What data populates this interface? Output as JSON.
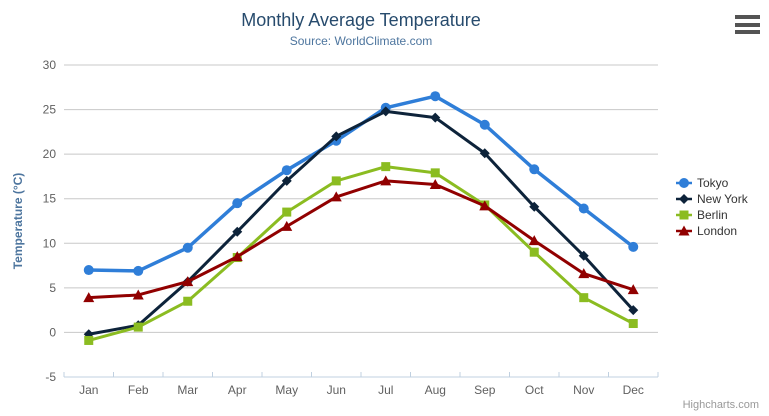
{
  "header": {
    "title": "Monthly Average Temperature",
    "subtitle": "Source: WorldClimate.com"
  },
  "credits_label": "Highcharts.com",
  "chart_data": {
    "type": "line",
    "title": "Monthly Average Temperature",
    "subtitle": "Source: WorldClimate.com",
    "xlabel": "",
    "ylabel": "Temperature (°C)",
    "categories": [
      "Jan",
      "Feb",
      "Mar",
      "Apr",
      "May",
      "Jun",
      "Jul",
      "Aug",
      "Sep",
      "Oct",
      "Nov",
      "Dec"
    ],
    "series": [
      {
        "name": "Tokyo",
        "color": "#2f7ed8",
        "marker": "circle",
        "line_width": 3.5,
        "values": [
          7.0,
          6.9,
          9.5,
          14.5,
          18.2,
          21.5,
          25.2,
          26.5,
          23.3,
          18.3,
          13.9,
          9.6
        ]
      },
      {
        "name": "New York",
        "color": "#0d233a",
        "marker": "diamond",
        "line_width": 3,
        "values": [
          -0.2,
          0.8,
          5.7,
          11.3,
          17.0,
          22.0,
          24.8,
          24.1,
          20.1,
          14.1,
          8.6,
          2.5
        ]
      },
      {
        "name": "Berlin",
        "color": "#8bbc21",
        "marker": "square",
        "line_width": 3,
        "values": [
          -0.9,
          0.6,
          3.5,
          8.4,
          13.5,
          17.0,
          18.6,
          17.9,
          14.3,
          9.0,
          3.9,
          1.0
        ]
      },
      {
        "name": "London",
        "color": "#910000",
        "marker": "triangle",
        "line_width": 3,
        "values": [
          3.9,
          4.2,
          5.7,
          8.5,
          11.9,
          15.2,
          17.0,
          16.6,
          14.2,
          10.3,
          6.6,
          4.8
        ]
      }
    ],
    "ylim": [
      -5,
      30
    ],
    "ytick_step": 5,
    "grid": true,
    "legend_position": "right",
    "colors": {
      "title": "#274b6d",
      "subtitle": "#4d759e",
      "axis_title": "#4d759e",
      "axis_label": "#606060",
      "grid_line": "#c8c8c8",
      "axis_line": "#c0d0e0",
      "legend_text": "#333333",
      "credits": "#999999"
    }
  }
}
